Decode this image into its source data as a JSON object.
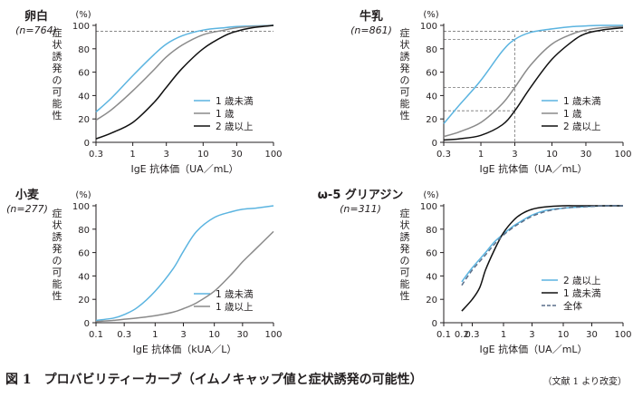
{
  "chart_data": [
    {
      "type": "line",
      "title": "卵白",
      "subtitle": "(n=764)",
      "xlabel": "IgE 抗体価（UA／mL）",
      "ylabel": "症状誘発の可能性",
      "yunit": "(%)",
      "xscale": "log",
      "xlim": [
        0.3,
        100
      ],
      "ylim": [
        0,
        100
      ],
      "xticks": [
        0.3,
        1,
        3,
        10,
        30,
        100
      ],
      "xtick_labels": [
        "0.3",
        "1",
        "3",
        "10",
        "30",
        "100"
      ],
      "yticks": [
        0,
        20,
        40,
        60,
        80,
        100
      ],
      "legend_position": "lower-right",
      "reference_lines": [
        {
          "type": "horizontal",
          "y": 95,
          "style": "dashed"
        }
      ],
      "series": [
        {
          "name": "1 歳未満",
          "color": "#5bb4e0",
          "style": "solid",
          "x": [
            0.3,
            0.5,
            1,
            2,
            3,
            5,
            10,
            20,
            30,
            50,
            100
          ],
          "y": [
            26,
            38,
            57,
            75,
            84,
            91,
            96,
            98,
            99,
            99.5,
            100
          ]
        },
        {
          "name": "1 歳",
          "color": "#8a8a8a",
          "style": "solid",
          "x": [
            0.3,
            0.5,
            1,
            2,
            3,
            5,
            10,
            20,
            30,
            50,
            100
          ],
          "y": [
            19,
            28,
            44,
            62,
            73,
            83,
            92,
            96,
            98,
            99,
            100
          ]
        },
        {
          "name": "2 歳以上",
          "color": "#111111",
          "style": "solid",
          "x": [
            0.3,
            0.5,
            1,
            2,
            3,
            5,
            10,
            20,
            30,
            50,
            100
          ],
          "y": [
            3,
            8,
            17,
            34,
            47,
            63,
            80,
            91,
            95,
            98,
            100
          ]
        }
      ]
    },
    {
      "type": "line",
      "title": "牛乳",
      "subtitle": "(n=861)",
      "xlabel": "IgE 抗体価（UA／mL）",
      "ylabel": "症状誘発の可能性",
      "yunit": "(%)",
      "xscale": "log",
      "xlim": [
        0.3,
        100
      ],
      "ylim": [
        0,
        100
      ],
      "xticks": [
        0.3,
        1,
        3,
        10,
        30,
        100
      ],
      "xtick_labels": [
        "0.3",
        "1",
        "3",
        "10",
        "30",
        "100"
      ],
      "yticks": [
        0,
        20,
        40,
        60,
        80,
        100
      ],
      "legend_position": "lower-right",
      "reference_lines": [
        {
          "type": "horizontal",
          "y": 95,
          "style": "dashed"
        },
        {
          "type": "horizontal",
          "y": 88,
          "style": "dashed"
        },
        {
          "type": "horizontal",
          "y": 47,
          "style": "dashed"
        },
        {
          "type": "horizontal",
          "y": 27,
          "style": "dashed"
        },
        {
          "type": "vertical",
          "x": 3,
          "style": "dashed"
        }
      ],
      "series": [
        {
          "name": "1 歳未満",
          "color": "#5bb4e0",
          "style": "solid",
          "x": [
            0.3,
            0.5,
            1,
            2,
            3,
            5,
            10,
            20,
            30,
            50,
            100
          ],
          "y": [
            16,
            32,
            53,
            78,
            88,
            94,
            97,
            99,
            99.5,
            100,
            100
          ]
        },
        {
          "name": "1 歳",
          "color": "#8a8a8a",
          "style": "solid",
          "x": [
            0.3,
            0.5,
            1,
            2,
            3,
            5,
            10,
            20,
            30,
            50,
            100
          ],
          "y": [
            5,
            9,
            17,
            33,
            47,
            66,
            84,
            93,
            96,
            98,
            99
          ]
        },
        {
          "name": "2 歳以上",
          "color": "#111111",
          "style": "solid",
          "x": [
            0.3,
            0.5,
            1,
            2,
            3,
            5,
            10,
            20,
            30,
            50,
            100
          ],
          "y": [
            2,
            3,
            6,
            15,
            27,
            47,
            71,
            87,
            93,
            96,
            98
          ]
        }
      ]
    },
    {
      "type": "line",
      "title": "小麦",
      "subtitle": "(n=277)",
      "xlabel": "IgE 抗体価（kUA／L）",
      "ylabel": "症状誘発の可能性",
      "yunit": "(%)",
      "xscale": "log",
      "xlim": [
        0.1,
        100
      ],
      "ylim": [
        0,
        100
      ],
      "xticks": [
        0.1,
        0.3,
        1,
        3,
        10,
        30,
        100
      ],
      "xtick_labels": [
        "0.1",
        "0.3",
        "1",
        "3",
        "10",
        "30",
        "100"
      ],
      "yticks": [
        0,
        20,
        40,
        60,
        80,
        100
      ],
      "legend_position": "lower-right",
      "series": [
        {
          "name": "1 歳未満",
          "color": "#5bb4e0",
          "style": "solid",
          "x": [
            0.1,
            0.2,
            0.3,
            0.5,
            1,
            2,
            3,
            5,
            10,
            20,
            30,
            50,
            100
          ],
          "y": [
            2,
            4,
            7,
            13,
            27,
            46,
            61,
            78,
            90,
            95,
            97,
            98,
            100
          ]
        },
        {
          "name": "1 歳以上",
          "color": "#8a8a8a",
          "style": "solid",
          "x": [
            0.1,
            0.2,
            0.3,
            0.5,
            1,
            2,
            3,
            5,
            10,
            20,
            30,
            50,
            100
          ],
          "y": [
            1,
            2,
            3,
            4,
            6,
            9,
            12,
            17,
            27,
            42,
            52,
            63,
            78
          ]
        }
      ]
    },
    {
      "type": "line",
      "title": "ω-5 グリアジン",
      "subtitle": "(n=311)",
      "xlabel": "IgE 抗体価（UA／mL）",
      "ylabel": "症状誘発の可能性",
      "yunit": "(%)",
      "xscale": "log",
      "xlim": [
        0.1,
        100
      ],
      "ylim": [
        0,
        100
      ],
      "xticks": [
        0.1,
        0.2,
        0.3,
        1,
        3,
        10,
        30,
        100
      ],
      "xtick_labels": [
        "0.1",
        "0.2",
        "0.3",
        "1",
        "3",
        "10",
        "30",
        "100"
      ],
      "yticks": [
        0,
        20,
        40,
        60,
        80,
        100
      ],
      "legend_position": "lower-right",
      "series": [
        {
          "name": "2 歳以上",
          "color": "#5bb4e0",
          "style": "solid",
          "x": [
            0.2,
            0.3,
            0.5,
            0.7,
            1,
            1.5,
            2,
            3,
            5,
            10,
            20,
            50,
            100
          ],
          "y": [
            35,
            47,
            60,
            69,
            76,
            83,
            87,
            92,
            96,
            98,
            99,
            100,
            100
          ]
        },
        {
          "name": "1 歳未満",
          "color": "#111111",
          "style": "solid",
          "x": [
            0.2,
            0.3,
            0.4,
            0.5,
            0.7,
            1,
            1.5,
            2,
            3,
            5,
            10,
            20,
            50,
            100
          ],
          "y": [
            10,
            20,
            30,
            45,
            62,
            77,
            88,
            93,
            97,
            99,
            100,
            100,
            100,
            100
          ]
        },
        {
          "name": "全体",
          "color": "#5a6f8a",
          "style": "dashed",
          "x": [
            0.2,
            0.3,
            0.5,
            0.7,
            1,
            1.5,
            2,
            3,
            5,
            10,
            20,
            50,
            100
          ],
          "y": [
            32,
            45,
            58,
            67,
            75,
            82,
            86,
            91,
            95,
            98,
            99,
            100,
            100
          ]
        }
      ]
    }
  ],
  "caption": {
    "title": "図 1　プロバビリティーカーブ（イムノキャップ値と症状誘発の可能性）",
    "source": "（文献 1 より改変）"
  }
}
